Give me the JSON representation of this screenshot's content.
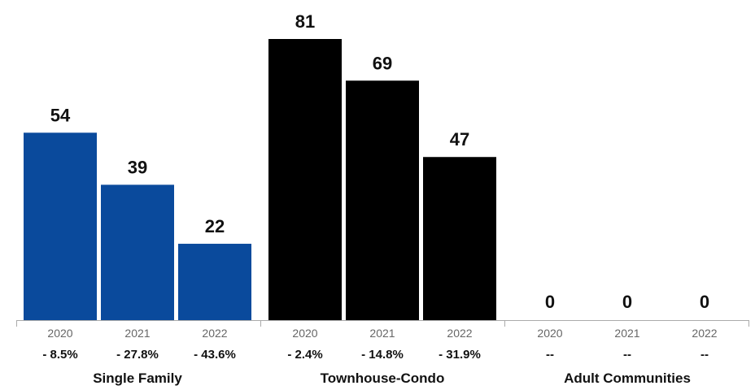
{
  "chart_data": {
    "type": "bar",
    "title": "",
    "ylim": [
      0,
      81
    ],
    "grid": false,
    "legend": "none",
    "groups": [
      {
        "name": "Single Family",
        "color": "#0a4a9c",
        "bars": [
          {
            "year": "2020",
            "value": 54,
            "value_label": "54",
            "change": "- 8.5%"
          },
          {
            "year": "2021",
            "value": 39,
            "value_label": "39",
            "change": "- 27.8%"
          },
          {
            "year": "2022",
            "value": 22,
            "value_label": "22",
            "change": "- 43.6%"
          }
        ]
      },
      {
        "name": "Townhouse-Condo",
        "color": "#000000",
        "bars": [
          {
            "year": "2020",
            "value": 81,
            "value_label": "81",
            "change": "- 2.4%"
          },
          {
            "year": "2021",
            "value": 69,
            "value_label": "69",
            "change": "- 14.8%"
          },
          {
            "year": "2022",
            "value": 47,
            "value_label": "47",
            "change": "- 31.9%"
          }
        ]
      },
      {
        "name": "Adult Communities",
        "color": "#7f7f7f",
        "bars": [
          {
            "year": "2020",
            "value": 0,
            "value_label": "0",
            "change": "--"
          },
          {
            "year": "2021",
            "value": 0,
            "value_label": "0",
            "change": "--"
          },
          {
            "year": "2022",
            "value": 0,
            "value_label": "0",
            "change": "--"
          }
        ]
      }
    ]
  }
}
